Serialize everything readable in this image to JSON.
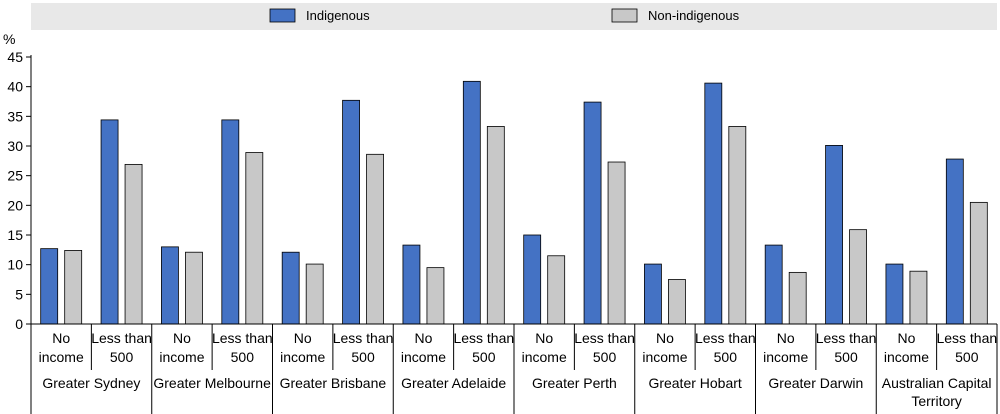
{
  "chart_data": {
    "type": "bar",
    "ylabel": "%",
    "ylim": [
      0,
      45
    ],
    "yticks": [
      0,
      5,
      10,
      15,
      20,
      25,
      30,
      35,
      40,
      45
    ],
    "grid": false,
    "legend_position": "top",
    "categories": [
      {
        "group": "Greater Sydney",
        "sub": [
          "No",
          "income"
        ]
      },
      {
        "group": "Greater Sydney",
        "sub": [
          "Less than",
          "500"
        ]
      },
      {
        "group": "Greater Melbourne",
        "sub": [
          "No",
          "income"
        ]
      },
      {
        "group": "Greater Melbourne",
        "sub": [
          "Less than",
          "500"
        ]
      },
      {
        "group": "Greater Brisbane",
        "sub": [
          "No",
          "income"
        ]
      },
      {
        "group": "Greater Brisbane",
        "sub": [
          "Less than",
          "500"
        ]
      },
      {
        "group": "Greater Adelaide",
        "sub": [
          "No",
          "income"
        ]
      },
      {
        "group": "Greater Adelaide",
        "sub": [
          "Less than",
          "500"
        ]
      },
      {
        "group": "Greater Perth",
        "sub": [
          "No",
          "income"
        ]
      },
      {
        "group": "Greater Perth",
        "sub": [
          "Less than",
          "500"
        ]
      },
      {
        "group": "Greater Hobart",
        "sub": [
          "No",
          "income"
        ]
      },
      {
        "group": "Greater Hobart",
        "sub": [
          "Less than",
          "500"
        ]
      },
      {
        "group": "Greater Darwin",
        "sub": [
          "No",
          "income"
        ]
      },
      {
        "group": "Greater Darwin",
        "sub": [
          "Less than",
          "500"
        ]
      },
      {
        "group": "Australian Capital Territory",
        "sub": [
          "No",
          "income"
        ]
      },
      {
        "group": "Australian Capital Territory",
        "sub": [
          "Less than",
          "500"
        ]
      }
    ],
    "groups": [
      [
        "Greater Sydney"
      ],
      [
        "Greater Melbourne"
      ],
      [
        "Greater Brisbane"
      ],
      [
        "Greater Adelaide"
      ],
      [
        "Greater Perth"
      ],
      [
        "Greater Hobart"
      ],
      [
        "Greater Darwin"
      ],
      [
        "Australian Capital",
        "Territory"
      ]
    ],
    "series": [
      {
        "name": "Indigenous",
        "color": "#4472c4",
        "values": [
          12.7,
          34.4,
          13.0,
          34.4,
          12.1,
          37.7,
          13.3,
          40.9,
          15.0,
          37.4,
          10.1,
          40.6,
          13.3,
          30.1,
          10.1,
          27.8
        ]
      },
      {
        "name": "Non-indigenous",
        "color": "#c8c8c8",
        "values": [
          12.4,
          26.9,
          12.1,
          28.9,
          10.1,
          28.6,
          9.5,
          33.3,
          11.5,
          27.3,
          7.5,
          33.3,
          8.7,
          15.9,
          8.9,
          20.5
        ]
      }
    ]
  }
}
